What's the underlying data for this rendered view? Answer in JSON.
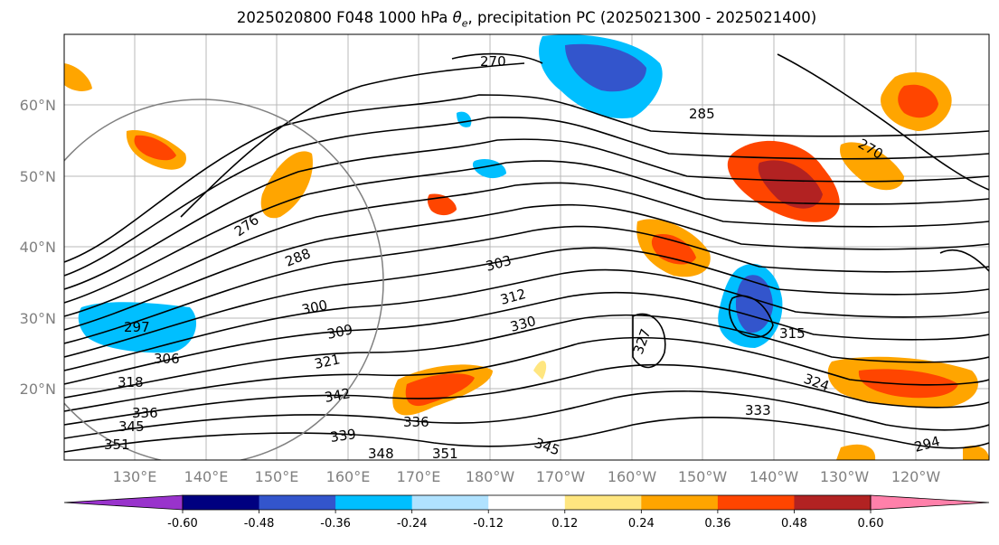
{
  "title_main": "2025020800 F048 1000 hPa",
  "title_symbol": "θ",
  "title_sub": "e",
  "title_rest": ", precipitation PC (2025021300 - 2025021400)",
  "lat_labels": [
    "20°N",
    "30°N",
    "40°N",
    "50°N",
    "60°N"
  ],
  "lon_labels": [
    "130°E",
    "140°E",
    "150°E",
    "160°E",
    "170°E",
    "180°W",
    "170°W",
    "160°W",
    "150°W",
    "140°W",
    "130°W",
    "120°W"
  ],
  "colorbar": {
    "colors": [
      "#9933cc",
      "#000080",
      "#3355cc",
      "#00bfff",
      "#b0e2ff",
      "#ffffff",
      "#ffe680",
      "#ffa500",
      "#ff4500",
      "#b22222",
      "#ff80aa"
    ],
    "tick_labels": [
      "-0.60",
      "-0.48",
      "-0.36",
      "-0.24",
      "-0.12",
      "0.12",
      "0.24",
      "0.36",
      "0.48",
      "0.60"
    ]
  },
  "contour_labels": [
    "270",
    "285",
    "270",
    "276",
    "288",
    "303",
    "312",
    "300",
    "297",
    "309",
    "330",
    "327",
    "306",
    "321",
    "315",
    "318",
    "342",
    "324",
    "336",
    "336",
    "333",
    "345",
    "339",
    "348",
    "351",
    "345",
    "351",
    "294"
  ]
}
